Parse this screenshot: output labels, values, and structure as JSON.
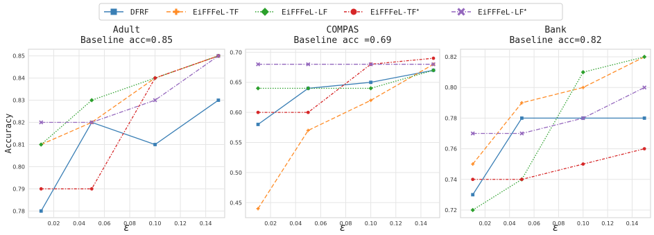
{
  "legend": {
    "entries": [
      {
        "label": "DFRF",
        "star": false,
        "color": "#3a7fb5",
        "dash": "",
        "marker": "square"
      },
      {
        "label": "EiFFFeL-TF",
        "star": false,
        "color": "#ff8c26",
        "dash": "6,3",
        "marker": "plus"
      },
      {
        "label": "EiFFFeL-LF",
        "star": false,
        "color": "#2ca02c",
        "dash": "1.5,2",
        "marker": "diamond"
      },
      {
        "label": "EiFFFeL-TF",
        "star": true,
        "color": "#d62728",
        "dash": "4,2,1.5,2",
        "marker": "circle"
      },
      {
        "label": "EiFFFeL-LF",
        "star": true,
        "color": "#9467bd",
        "dash": "6,2,1.5,2",
        "marker": "x"
      }
    ],
    "star_symbol": "★"
  },
  "shared": {
    "xlabel": "ε",
    "ylabel": "Accuracy",
    "x": [
      0.01,
      0.05,
      0.1,
      0.15
    ],
    "xticks": [
      0.02,
      0.04,
      0.06,
      0.08,
      0.1,
      0.12,
      0.14
    ],
    "xlim": [
      0.0,
      0.155
    ]
  },
  "chart_data": [
    {
      "type": "line",
      "title": "Adult",
      "subtitle": "Baseline acc=0.85",
      "xlabel": "ε",
      "ylabel": "Accuracy",
      "x": [
        0.01,
        0.05,
        0.1,
        0.15
      ],
      "ylim": [
        0.777,
        0.853
      ],
      "yticks": [
        0.78,
        0.79,
        0.8,
        0.81,
        0.82,
        0.83,
        0.84,
        0.85
      ],
      "grid": true,
      "series": [
        {
          "name": "DFRF",
          "values": [
            0.78,
            0.82,
            0.81,
            0.83
          ]
        },
        {
          "name": "EiFFFeL-TF",
          "values": [
            0.81,
            0.82,
            0.84,
            0.85
          ]
        },
        {
          "name": "EiFFFeL-LF",
          "values": [
            0.81,
            0.83,
            0.84,
            0.85
          ]
        },
        {
          "name": "EiFFFeL-TF★",
          "values": [
            0.79,
            0.79,
            0.84,
            0.85
          ]
        },
        {
          "name": "EiFFFeL-LF★",
          "values": [
            0.82,
            0.82,
            0.83,
            0.85
          ]
        }
      ]
    },
    {
      "type": "line",
      "title": "COMPAS",
      "subtitle": "Baseline acc =0.69",
      "xlabel": "ε",
      "ylabel": "",
      "x": [
        0.01,
        0.05,
        0.1,
        0.15
      ],
      "ylim": [
        0.425,
        0.705
      ],
      "yticks": [
        0.45,
        0.5,
        0.55,
        0.6,
        0.65,
        0.7
      ],
      "grid": true,
      "series": [
        {
          "name": "DFRF",
          "values": [
            0.58,
            0.64,
            0.65,
            0.67
          ]
        },
        {
          "name": "EiFFFeL-TF",
          "values": [
            0.44,
            0.57,
            0.62,
            0.68
          ]
        },
        {
          "name": "EiFFFeL-LF",
          "values": [
            0.64,
            0.64,
            0.64,
            0.67
          ]
        },
        {
          "name": "EiFFFeL-TF★",
          "values": [
            0.6,
            0.6,
            0.68,
            0.69
          ]
        },
        {
          "name": "EiFFFeL-LF★",
          "values": [
            0.68,
            0.68,
            0.68,
            0.68
          ]
        }
      ]
    },
    {
      "type": "line",
      "title": "Bank",
      "subtitle": "Baseline acc=0.82",
      "xlabel": "ε",
      "ylabel": "",
      "x": [
        0.01,
        0.05,
        0.1,
        0.15
      ],
      "ylim": [
        0.715,
        0.825
      ],
      "yticks": [
        0.72,
        0.74,
        0.76,
        0.78,
        0.8,
        0.82
      ],
      "grid": true,
      "series": [
        {
          "name": "DFRF",
          "values": [
            0.73,
            0.78,
            0.78,
            0.78
          ]
        },
        {
          "name": "EiFFFeL-TF",
          "values": [
            0.75,
            0.79,
            0.8,
            0.82
          ]
        },
        {
          "name": "EiFFFeL-LF",
          "values": [
            0.72,
            0.74,
            0.81,
            0.82
          ]
        },
        {
          "name": "EiFFFeL-TF★",
          "values": [
            0.74,
            0.74,
            0.75,
            0.76
          ]
        },
        {
          "name": "EiFFFeL-LF★",
          "values": [
            0.77,
            0.77,
            0.78,
            0.8
          ]
        }
      ]
    }
  ]
}
